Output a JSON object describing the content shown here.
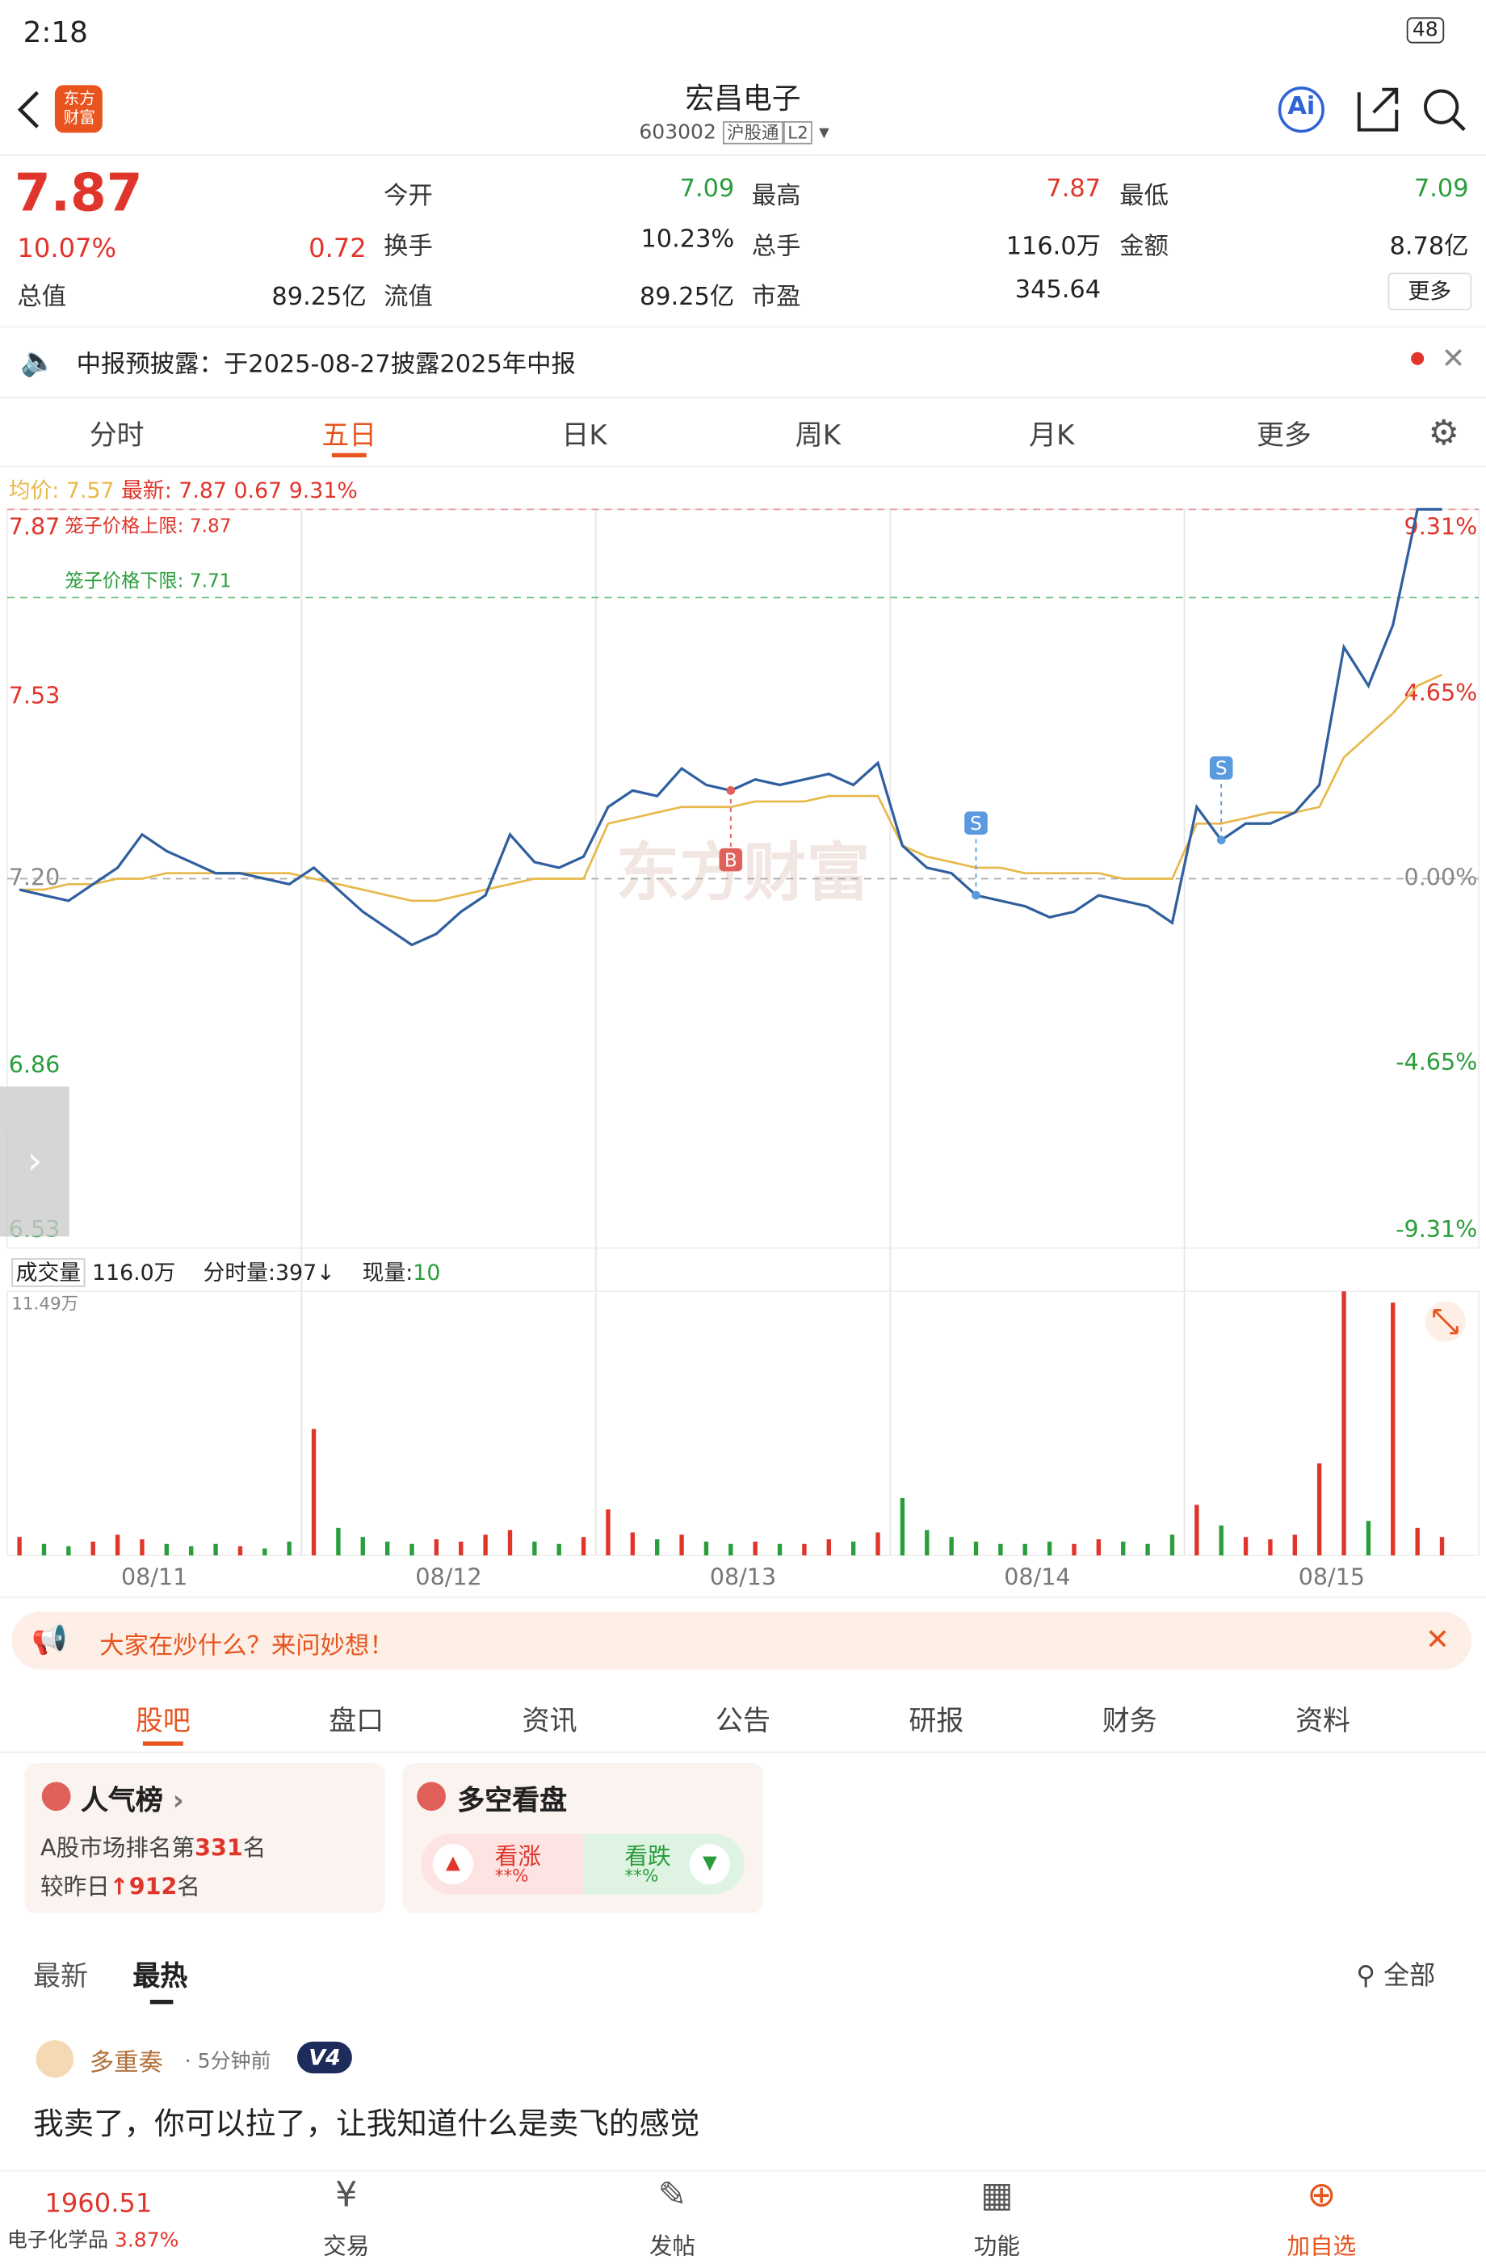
{
  "status": {
    "time": "2:18",
    "battery": "48"
  },
  "header": {
    "logo": "东方财富",
    "title": "宏昌电子",
    "code": "603002",
    "tags": [
      "沪股通",
      "L2"
    ],
    "ai": "Ai"
  },
  "quote": {
    "price": "7.87",
    "change_pct": "10.07%",
    "change": "0.72",
    "more": "更多",
    "fields": [
      {
        "label": "今开",
        "value": "7.09"
      },
      {
        "label": "最高",
        "value": "7.87"
      },
      {
        "label": "最低",
        "value": "7.09"
      },
      {
        "label": "换手",
        "value": "10.23%"
      },
      {
        "label": "总手",
        "value": "116.0万"
      },
      {
        "label": "金额",
        "value": "8.78亿"
      },
      {
        "label": "总值",
        "value": "89.25亿"
      },
      {
        "label": "流值",
        "value": "89.25亿"
      },
      {
        "label": "市盈",
        "value": "345.64"
      }
    ]
  },
  "notice": "中报预披露：于2025-08-27披露2025年中报",
  "tabs": [
    "分时",
    "五日",
    "日K",
    "周K",
    "月K",
    "更多"
  ],
  "chart_data": {
    "type": "line",
    "info": {
      "avg_label": "均价:",
      "avg": "7.57",
      "latest_label": "最新:",
      "latest": "7.87",
      "change": "0.67",
      "pct": "9.31%"
    },
    "upper_limit": {
      "label": "笼子价格上限: 7.87",
      "value": 7.87
    },
    "lower_limit": {
      "label": "笼子价格下限: 7.71",
      "value": 7.71
    },
    "watermark": "东方财富",
    "ylim": [
      6.53,
      7.87
    ],
    "yticks": [
      7.87,
      7.53,
      {
        "value": 7.2,
        "label": "7.20"
      },
      6.86,
      6.53
    ],
    "y2lim": [
      -9.31,
      9.31
    ],
    "y2ticks": [
      {
        "value": 9.31,
        "label": "9.31%"
      },
      {
        "value": 4.65,
        "label": "4.65%"
      },
      {
        "value": 0,
        "label": "0.00%"
      },
      {
        "value": -4.65,
        "label": "-4.65%"
      },
      {
        "value": -9.31,
        "label": "-9.31%"
      }
    ],
    "days": [
      "08/11",
      "08/12",
      "08/13",
      "08/14",
      "08/15"
    ],
    "series": [
      {
        "name": "最新",
        "color": "#2f5f9e",
        "values": [
          7.18,
          7.17,
          7.16,
          7.19,
          7.22,
          7.28,
          7.25,
          7.23,
          7.21,
          7.21,
          7.2,
          7.19,
          7.22,
          7.18,
          7.14,
          7.11,
          7.08,
          7.1,
          7.14,
          7.17,
          7.28,
          7.23,
          7.22,
          7.24,
          7.33,
          7.36,
          7.35,
          7.4,
          7.37,
          7.36,
          7.38,
          7.37,
          7.38,
          7.39,
          7.37,
          7.41,
          7.26,
          7.22,
          7.21,
          7.17,
          7.16,
          7.15,
          7.13,
          7.14,
          7.17,
          7.16,
          7.15,
          7.12,
          7.33,
          7.27,
          7.3,
          7.3,
          7.32,
          7.37,
          7.62,
          7.55,
          7.66,
          7.87,
          7.87,
          null
        ]
      },
      {
        "name": "均价",
        "color": "#e8b84a",
        "values": [
          7.18,
          7.18,
          7.19,
          7.19,
          7.2,
          7.2,
          7.21,
          7.21,
          7.21,
          7.21,
          7.21,
          7.21,
          7.2,
          7.19,
          7.18,
          7.17,
          7.16,
          7.16,
          7.17,
          7.18,
          7.19,
          7.2,
          7.2,
          7.2,
          7.3,
          7.31,
          7.32,
          7.33,
          7.33,
          7.33,
          7.34,
          7.34,
          7.34,
          7.35,
          7.35,
          7.35,
          7.26,
          7.24,
          7.23,
          7.22,
          7.22,
          7.21,
          7.21,
          7.21,
          7.21,
          7.2,
          7.2,
          7.2,
          7.3,
          7.3,
          7.31,
          7.32,
          7.32,
          7.33,
          7.42,
          7.46,
          7.5,
          7.55,
          7.57,
          null
        ]
      }
    ],
    "markers": [
      {
        "label": "B",
        "index": 29
      },
      {
        "label": "S",
        "index": 39
      },
      {
        "label": "S",
        "index": 49
      }
    ],
    "volume": {
      "label": "成交量",
      "total": "116.0万",
      "bar": "分时量:397",
      "now_label": "现量:",
      "now": "10",
      "ylim": [
        0,
        11.49
      ],
      "yticks": [
        {
          "value": 11.49,
          "label": "11.49万"
        }
      ],
      "values": [
        0.8,
        0.5,
        0.4,
        0.6,
        0.9,
        0.7,
        0.5,
        0.4,
        0.5,
        0.4,
        0.3,
        0.6,
        5.5,
        1.2,
        0.8,
        0.6,
        0.5,
        0.7,
        0.6,
        0.9,
        1.1,
        0.6,
        0.5,
        0.8,
        2.0,
        1.0,
        0.7,
        0.9,
        0.6,
        0.5,
        0.6,
        0.5,
        0.5,
        0.7,
        0.6,
        1.0,
        2.5,
        1.1,
        0.8,
        0.6,
        0.5,
        0.5,
        0.6,
        0.5,
        0.7,
        0.6,
        0.5,
        0.9,
        2.2,
        1.3,
        0.8,
        0.7,
        0.9,
        4.0,
        11.49,
        1.5,
        11.0,
        1.2,
        0.8,
        null
      ]
    }
  },
  "banner": "大家在炒什么？来问妙想！",
  "subtabs": [
    "股吧",
    "盘口",
    "资讯",
    "公告",
    "研报",
    "财务",
    "资料"
  ],
  "cards": {
    "rank": {
      "title": "人气榜",
      "line1": "A股市场排名第",
      "rank": "331",
      "unit": "名",
      "line2": "较昨日",
      "delta": "912",
      "unit2": "名"
    },
    "vote": {
      "title": "多空看盘",
      "up": "看涨",
      "up_pct": "**%",
      "down": "看跌",
      "down_pct": "**%"
    }
  },
  "feed": {
    "tabs": [
      "最新",
      "最热"
    ],
    "filter": "全部"
  },
  "post": {
    "user": "多重奏",
    "time": "5分钟前",
    "badge": "V4",
    "content": "我卖了，你可以拉了，让我知道什么是卖飞的感觉"
  },
  "bottom": {
    "index": "1960.51",
    "sector": "电子化学品",
    "sector_pct": "3.87%",
    "items": [
      "交易",
      "发帖",
      "功能",
      "加自选"
    ]
  }
}
